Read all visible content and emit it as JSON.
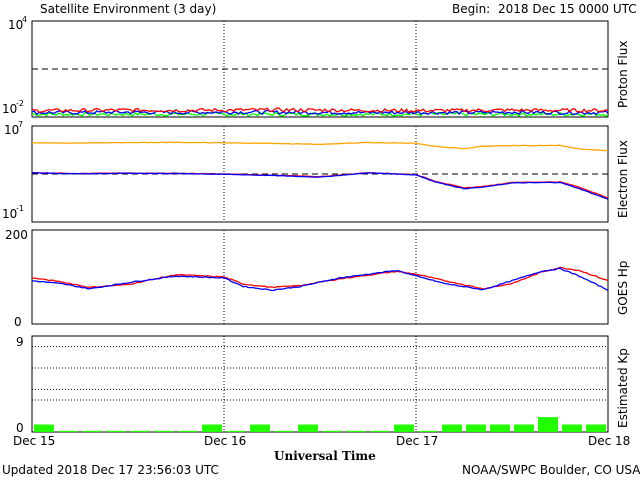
{
  "header": {
    "title": "Satellite Environment (3 day)",
    "begin_label": "Begin:",
    "begin_value": "2018 Dec 15 0000 UTC"
  },
  "footer": {
    "updated": "Updated 2018 Dec 17 23:56:03 UTC",
    "credit": "NOAA/SWPC Boulder, CO USA"
  },
  "colors": {
    "frame": "#000000",
    "red": "#ff0000",
    "blue": "#0000ff",
    "green": "#00ff00",
    "orange": "#ffa500",
    "bar": "#22ff00"
  },
  "chart_data": [
    {
      "type": "line",
      "ylabel": "Proton Flux",
      "y_ticks": {
        "top_mant": "10",
        "top_exp": "4",
        "bottom_mant": "10",
        "bottom_exp": "-2"
      },
      "yscale": "log",
      "ylim": [
        0.01,
        10000
      ],
      "threshold": 10,
      "x_range_days": [
        0,
        3
      ],
      "grid": "vertical dotted at day boundaries",
      "series": [
        {
          "color": "red",
          "x": [
            0,
            0.25,
            0.5,
            0.75,
            1,
            1.25,
            1.5,
            1.75,
            2,
            2.25,
            2.5,
            2.75,
            3
          ],
          "values": [
            0.025,
            0.026,
            0.027,
            0.026,
            0.027,
            0.028,
            0.027,
            0.026,
            0.025,
            0.026,
            0.027,
            0.026,
            0.026
          ]
        },
        {
          "color": "blue",
          "x": [
            0,
            0.25,
            0.5,
            0.75,
            1,
            1.25,
            1.5,
            1.75,
            2,
            2.25,
            2.5,
            2.75,
            3
          ],
          "values": [
            0.019,
            0.019,
            0.02,
            0.019,
            0.02,
            0.02,
            0.019,
            0.019,
            0.019,
            0.019,
            0.02,
            0.019,
            0.019
          ]
        },
        {
          "color": "green",
          "x": [
            0,
            0.25,
            0.5,
            0.75,
            1,
            1.25,
            1.5,
            1.75,
            2,
            2.25,
            2.5,
            2.75,
            3
          ],
          "values": [
            0.015,
            0.015,
            0.015,
            0.015,
            0.015,
            0.015,
            0.015,
            0.015,
            0.015,
            0.015,
            0.015,
            0.015,
            0.015
          ]
        }
      ]
    },
    {
      "type": "line",
      "ylabel": "Electron Flux",
      "y_ticks": {
        "top_mant": "10",
        "top_exp": "7",
        "bottom_mant": "10",
        "bottom_exp": "-1"
      },
      "yscale": "log",
      "ylim": [
        0.1,
        10000000
      ],
      "threshold": 1000,
      "x_range_days": [
        0,
        3
      ],
      "series": [
        {
          "color": "orange",
          "x": [
            0,
            0.25,
            0.5,
            0.75,
            1,
            1.25,
            1.5,
            1.75,
            2,
            2.1,
            2.25,
            2.35,
            2.5,
            2.75,
            2.85,
            3
          ],
          "values": [
            400000,
            380000,
            420000,
            430000,
            400000,
            350000,
            300000,
            420000,
            360000,
            200000,
            130000,
            210000,
            230000,
            240000,
            120000,
            90000
          ]
        },
        {
          "color": "red",
          "x": [
            0,
            0.25,
            0.5,
            0.75,
            1,
            1.25,
            1.5,
            1.75,
            2,
            2.1,
            2.25,
            2.35,
            2.5,
            2.75,
            2.85,
            3
          ],
          "values": [
            1300,
            1100,
            1200,
            1150,
            1000,
            800,
            600,
            1300,
            900,
            250,
            70,
            90,
            200,
            220,
            80,
            10
          ]
        },
        {
          "color": "blue",
          "x": [
            0,
            0.25,
            0.5,
            0.75,
            1,
            1.25,
            1.5,
            1.75,
            2,
            2.1,
            2.25,
            2.35,
            2.5,
            2.75,
            2.85,
            3
          ],
          "values": [
            1250,
            1050,
            1150,
            1100,
            950,
            750,
            550,
            1250,
            850,
            220,
            60,
            80,
            180,
            200,
            60,
            8
          ]
        }
      ]
    },
    {
      "type": "line",
      "ylabel": "GOES Hp",
      "y_ticks": [
        "0",
        "200"
      ],
      "ylim": [
        0,
        200
      ],
      "x_range_days": [
        0,
        3
      ],
      "series": [
        {
          "color": "red",
          "x": [
            0,
            0.15,
            0.3,
            0.5,
            0.75,
            1,
            1.1,
            1.25,
            1.4,
            1.6,
            1.9,
            2.0,
            2.15,
            2.35,
            2.5,
            2.65,
            2.75,
            2.85,
            3
          ],
          "values": [
            98,
            90,
            78,
            84,
            105,
            100,
            85,
            78,
            82,
            96,
            112,
            106,
            92,
            75,
            86,
            110,
            120,
            114,
            92
          ]
        },
        {
          "color": "blue",
          "x": [
            0,
            0.15,
            0.3,
            0.5,
            0.75,
            1,
            1.1,
            1.25,
            1.4,
            1.6,
            1.9,
            2.0,
            2.15,
            2.35,
            2.5,
            2.65,
            2.75,
            2.85,
            3
          ],
          "values": [
            92,
            86,
            75,
            88,
            102,
            98,
            80,
            72,
            80,
            98,
            114,
            102,
            86,
            73,
            92,
            112,
            118,
            102,
            72
          ]
        }
      ]
    },
    {
      "type": "bar",
      "ylabel": "Estimated Kp",
      "y_ticks": [
        "0",
        "9"
      ],
      "ylim": [
        0,
        9
      ],
      "gridlines": [
        3,
        4,
        6,
        8
      ],
      "xlabel": "Universal Time",
      "x_ticks": [
        "Dec 15",
        "Dec 16",
        "Dec 17",
        "Dec 18"
      ],
      "categories": [
        "0",
        "3",
        "6",
        "9",
        "12",
        "15",
        "18",
        "21",
        "24",
        "27",
        "30",
        "33",
        "36",
        "39",
        "42",
        "45",
        "48",
        "51",
        "54",
        "57",
        "60",
        "63",
        "66",
        "69"
      ],
      "values": [
        0.7,
        0.1,
        0.1,
        0.1,
        0.1,
        0.1,
        0.1,
        0.7,
        0.1,
        0.7,
        0.1,
        0.7,
        0.1,
        0.1,
        0.1,
        0.7,
        0.1,
        0.7,
        0.7,
        0.7,
        0.7,
        1.4,
        0.7,
        0.7
      ]
    }
  ]
}
